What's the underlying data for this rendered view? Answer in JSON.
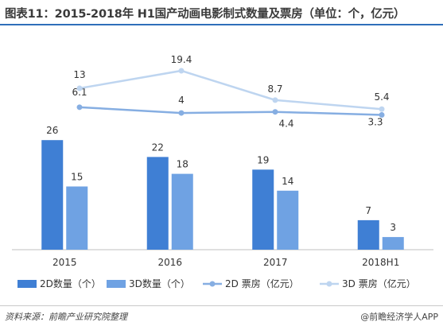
{
  "title": "图表11：2015-2018年 H1国产动画电影制式数量及票房（单位：个，亿元）",
  "source": "资料来源：前瞻产业研究院整理",
  "brand": "@前瞻经济学人APP",
  "colors": {
    "bar_2d": "#3f7fd4",
    "bar_3d": "#6fa2e3",
    "line_2d": "#86aee2",
    "line_3d": "#bed5f0",
    "title_rule": "#2f6fba"
  },
  "chart_data": {
    "type": "bar",
    "categories": [
      "2015",
      "2016",
      "2017",
      "2018H1"
    ],
    "series": [
      {
        "name": "2D数量（个）",
        "kind": "bar",
        "axis": "left",
        "values": [
          26,
          22,
          19,
          7
        ]
      },
      {
        "name": "3D数量（个）",
        "kind": "bar",
        "axis": "left",
        "values": [
          15,
          18,
          14,
          3
        ]
      },
      {
        "name": "2D 票房（亿元）",
        "kind": "line",
        "axis": "right",
        "values": [
          6.1,
          4,
          4.4,
          3.3
        ]
      },
      {
        "name": "3D 票房（亿元）",
        "kind": "line",
        "axis": "right",
        "values": [
          13,
          19.4,
          8.7,
          5.4
        ]
      }
    ],
    "ylim_left": [
      0,
      30
    ],
    "ylim_right": [
      -7,
      22
    ],
    "legend": "bottom",
    "grid": false
  }
}
